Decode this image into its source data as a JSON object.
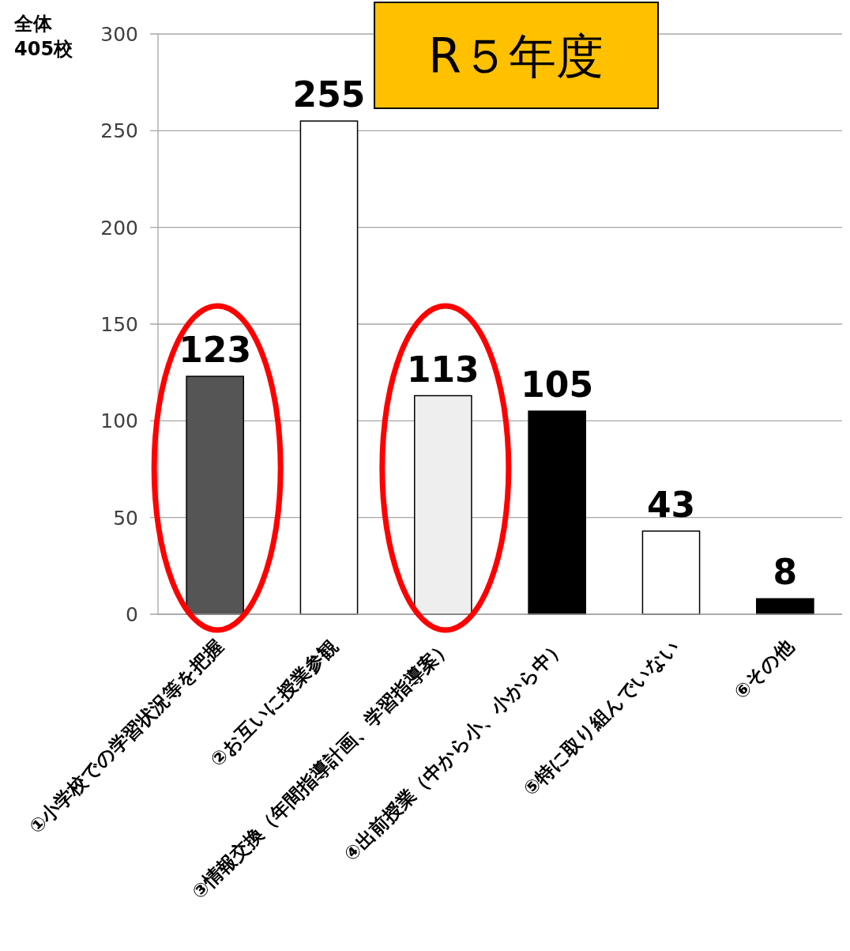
{
  "chart_data": {
    "type": "bar",
    "title": "R５年度",
    "annotations": [
      "全体\n405校"
    ],
    "categories": [
      "①小学校での学習状況等を把握",
      "②お互いに授業参観",
      "③情報交換（年間指導計画、学習指導案）",
      "④出前授業（中から小、小から中）",
      "⑤特に取り組んでいない",
      "⑥その他"
    ],
    "values": [
      123,
      255,
      113,
      105,
      43,
      8
    ],
    "colors": [
      "#555555",
      "#ffffff",
      "#eeeeee",
      "#000000",
      "#ffffff",
      "#000000"
    ],
    "ylim": [
      0,
      300
    ],
    "yticks": [
      0,
      50,
      100,
      150,
      200,
      250,
      300
    ],
    "grid": "y",
    "data_labels": true
  }
}
